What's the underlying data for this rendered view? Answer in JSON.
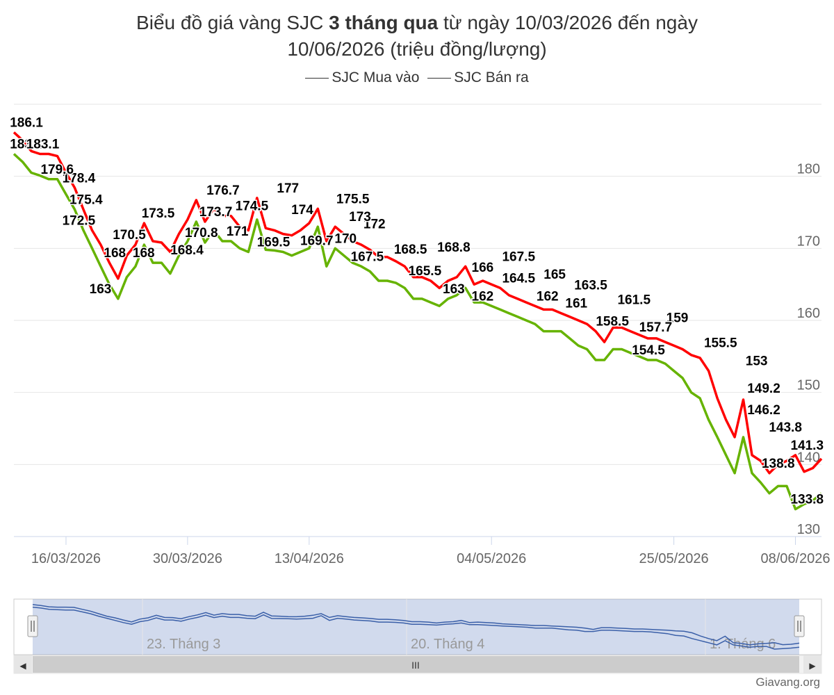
{
  "title": {
    "prefix": "Biểu đồ giá vàng SJC ",
    "bold": "3 tháng qua",
    "suffix": " từ ngày 10/03/2026 đến ngày",
    "line2": "10/06/2026 (triệu đồng/lượng)"
  },
  "legend": [
    {
      "name": "SJC Mua vào",
      "color": "#66b300"
    },
    {
      "name": "SJC Bán ra",
      "color": "#ff0000"
    }
  ],
  "credit": "Giavang.org",
  "navigator": {
    "labels": [
      "23. Tháng 3",
      "20. Tháng 4",
      "1. Tháng 6"
    ],
    "scroll_grip": "III",
    "left_arrow": "◀",
    "right_arrow": "▶"
  },
  "chart_data": {
    "type": "line",
    "title": "Biểu đồ giá vàng SJC 3 tháng qua từ ngày 10/03/2026 đến ngày 10/06/2026 (triệu đồng/lượng)",
    "xlabel": "",
    "ylabel": "",
    "ylim": [
      130,
      190
    ],
    "yticks": [
      130,
      140,
      150,
      160,
      170,
      180
    ],
    "x_tick_labels": [
      "16/03/2026",
      "30/03/2026",
      "13/04/2026",
      "04/05/2026",
      "25/05/2026",
      "08/06/2026"
    ],
    "x_tick_days": [
      6,
      20,
      34,
      55,
      76,
      90
    ],
    "x_range_days": [
      0,
      93
    ],
    "grid": true,
    "legend_position": "top-center",
    "series": [
      {
        "name": "SJC Bán ra",
        "color": "#ff0000",
        "x": [
          0,
          1,
          2,
          3,
          4,
          5,
          6,
          7,
          8,
          9,
          10,
          11,
          12,
          13,
          14,
          15,
          16,
          17,
          18,
          19,
          20,
          21,
          22,
          23,
          24,
          25,
          26,
          27,
          28,
          29,
          30,
          31,
          32,
          33,
          34,
          35,
          36,
          37,
          38,
          39,
          40,
          41,
          42,
          43,
          44,
          45,
          46,
          47,
          48,
          49,
          50,
          51,
          52,
          53,
          54,
          55,
          56,
          57,
          58,
          59,
          60,
          61,
          62,
          63,
          64,
          65,
          66,
          67,
          68,
          69,
          70,
          71,
          72,
          73,
          74,
          75,
          76,
          77,
          78,
          79,
          80,
          81,
          82,
          83,
          84,
          85,
          86,
          87,
          88,
          89,
          90,
          91,
          92,
          93
        ],
        "values": [
          186.1,
          185,
          183.5,
          183.1,
          183.1,
          182.8,
          180.5,
          178.4,
          175.4,
          172.5,
          170.5,
          168,
          165.8,
          169,
          170.5,
          173.5,
          171,
          170.8,
          169.5,
          172,
          174,
          176.7,
          173.7,
          175.5,
          174.5,
          174.5,
          173,
          172.5,
          177,
          172.8,
          172.5,
          172,
          171.8,
          172.5,
          173.5,
          175.5,
          171,
          173,
          172,
          171,
          170.5,
          169.8,
          168.8,
          168.8,
          168.2,
          167.5,
          166,
          166,
          165.5,
          164.5,
          165.5,
          166,
          167.5,
          165,
          165.5,
          165,
          164.5,
          163.5,
          163,
          162.5,
          162,
          161.5,
          161.5,
          161,
          160.5,
          160,
          159.5,
          158.5,
          157,
          159,
          159,
          158.5,
          158,
          157.5,
          157.5,
          157,
          156.5,
          156,
          155.2,
          154.8,
          153,
          149.2,
          146.2,
          143.8,
          149,
          141.3,
          140.5,
          138.8,
          140,
          140.5,
          141.3,
          139,
          139.5,
          140.8
        ],
        "data_labels": [
          {
            "x": 0,
            "value": 186.1
          },
          {
            "x": 9,
            "value": 178.4
          },
          {
            "x": 14,
            "value": 168
          },
          {
            "x": 20,
            "value": 173.5
          },
          {
            "x": 26,
            "value": 170.8
          },
          {
            "x": 29,
            "value": 176.7
          },
          {
            "x": 33,
            "value": 174.5
          },
          {
            "x": 38,
            "value": 177
          },
          {
            "x": 47,
            "value": 175.5
          },
          {
            "x": 50,
            "value": 172
          },
          {
            "x": 55,
            "value": 168.5
          },
          {
            "x": 61,
            "value": 168.8
          },
          {
            "x": 65,
            "value": 166
          },
          {
            "x": 70,
            "value": 167.5
          },
          {
            "x": 75,
            "value": 165
          },
          {
            "x": 80,
            "value": 163.5
          },
          {
            "x": 86,
            "value": 161.5
          },
          {
            "x": 92,
            "value": 159
          },
          {
            "x": 98,
            "value": 155.5
          },
          {
            "x": 103,
            "value": 153
          },
          {
            "x": 110,
            "value": 141.3
          }
        ]
      },
      {
        "name": "SJC Mua vào",
        "color": "#66b300",
        "x": [
          0,
          1,
          2,
          3,
          4,
          5,
          6,
          7,
          8,
          9,
          10,
          11,
          12,
          13,
          14,
          15,
          16,
          17,
          18,
          19,
          20,
          21,
          22,
          23,
          24,
          25,
          26,
          27,
          28,
          29,
          30,
          31,
          32,
          33,
          34,
          35,
          36,
          37,
          38,
          39,
          40,
          41,
          42,
          43,
          44,
          45,
          46,
          47,
          48,
          49,
          50,
          51,
          52,
          53,
          54,
          55,
          56,
          57,
          58,
          59,
          60,
          61,
          62,
          63,
          64,
          65,
          66,
          67,
          68,
          69,
          70,
          71,
          72,
          73,
          74,
          75,
          76,
          77,
          78,
          79,
          80,
          81,
          82,
          83,
          84,
          85,
          86,
          87,
          88,
          89,
          90,
          91,
          92,
          93
        ],
        "values": [
          183.1,
          182,
          180.5,
          180.1,
          179.6,
          179.6,
          177.5,
          175.4,
          172.5,
          170,
          167.5,
          165,
          163,
          166,
          167.5,
          170.5,
          168,
          168,
          166.5,
          169,
          171,
          173.7,
          170.8,
          172.5,
          171,
          171,
          170,
          169.5,
          174,
          169.8,
          169.7,
          169.5,
          169,
          169.5,
          170,
          173,
          167.5,
          170,
          169,
          168,
          167.5,
          166.8,
          165.5,
          165.5,
          165.2,
          164.5,
          163,
          163,
          162.5,
          162,
          163,
          163.5,
          164.5,
          162.5,
          162.5,
          162,
          161.5,
          161,
          160.5,
          160,
          159.5,
          158.5,
          158.5,
          158.5,
          157.5,
          156.5,
          156,
          154.5,
          154.5,
          156,
          156,
          155.5,
          155,
          154.5,
          154.5,
          154,
          153,
          152,
          150,
          149.2,
          146.2,
          143.8,
          141.3,
          138.8,
          143.8,
          138.8,
          137.5,
          136,
          137,
          137,
          133.8,
          134.5,
          135,
          136
        ],
        "data_labels": [
          {
            "x": 0,
            "value": 183.1
          },
          {
            "x": 4,
            "value": 183.1
          },
          {
            "x": 6,
            "value": 179.6
          },
          {
            "x": 10,
            "value": 175.4
          },
          {
            "x": 9,
            "value": 172.5
          },
          {
            "x": 12,
            "value": 163
          },
          {
            "x": 16,
            "value": 170.5
          },
          {
            "x": 18,
            "value": 168
          },
          {
            "x": 24,
            "value": 168.4
          },
          {
            "x": 28,
            "value": 173.7
          },
          {
            "x": 31,
            "value": 171
          },
          {
            "x": 36,
            "value": 169.5
          },
          {
            "x": 40,
            "value": 174
          },
          {
            "x": 42,
            "value": 169.7
          },
          {
            "x": 46,
            "value": 170
          },
          {
            "x": 48,
            "value": 173
          },
          {
            "x": 49,
            "value": 167.5
          },
          {
            "x": 57,
            "value": 165.5
          },
          {
            "x": 61,
            "value": 163
          },
          {
            "x": 65,
            "value": 162
          },
          {
            "x": 70,
            "value": 164.5
          },
          {
            "x": 74,
            "value": 162
          },
          {
            "x": 78,
            "value": 161
          },
          {
            "x": 83,
            "value": 158.5
          },
          {
            "x": 89,
            "value": 157.7
          },
          {
            "x": 88,
            "value": 154.5
          },
          {
            "x": 104,
            "value": 149.2
          },
          {
            "x": 104,
            "value": 146.2
          },
          {
            "x": 107,
            "value": 143.8
          },
          {
            "x": 106,
            "value": 138.8
          },
          {
            "x": 110,
            "value": 133.8
          }
        ]
      }
    ]
  }
}
